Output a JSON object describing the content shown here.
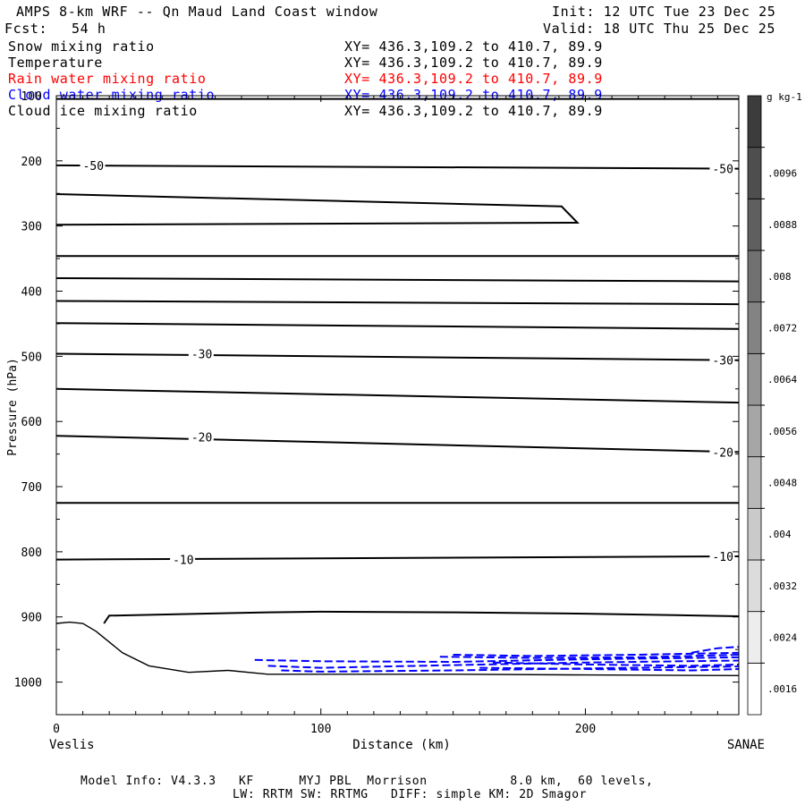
{
  "header": {
    "title": "AMPS 8-km WRF -- Qn Maud Land Coast window",
    "fcst_label": "Fcst:",
    "fcst_value": "54 h",
    "init": "Init: 12 UTC Tue 23 Dec 25",
    "valid": "Valid: 18 UTC Thu 25 Dec 25"
  },
  "fields": [
    {
      "name": "Snow mixing ratio",
      "xy": "XY= 436.3,109.2 to 410.7, 89.9",
      "color": "#000000"
    },
    {
      "name": "Temperature",
      "xy": "XY= 436.3,109.2 to 410.7, 89.9",
      "color": "#000000"
    },
    {
      "name": "Rain water mixing ratio",
      "xy": "XY= 436.3,109.2 to 410.7, 89.9",
      "color": "#ff0000"
    },
    {
      "name": "Cloud water mixing ratio",
      "xy": "XY= 436.3,109.2 to 410.7, 89.9",
      "color": "#0000ff"
    },
    {
      "name": "Cloud ice mixing ratio",
      "xy": "XY= 436.3,109.2 to 410.7, 89.9",
      "color": "#000000"
    }
  ],
  "footer": {
    "line1": "Model Info: V4.3.3   KF      MYJ PBL  Morrison           8.0 km,  60 levels,",
    "line2": "LW: RRTM SW: RRTMG   DIFF: simple KM: 2D Smagor"
  },
  "chart_data": {
    "type": "line",
    "subtype": "vertical cross-section contour",
    "xlabel": "Distance (km)",
    "ylabel": "Pressure (hPa)",
    "xlim": [
      0,
      258
    ],
    "ylim": [
      1050,
      100
    ],
    "x_ticks": [
      0,
      100,
      200
    ],
    "x_tick_labels": [
      "0",
      "100",
      "200"
    ],
    "y_ticks": [
      100,
      200,
      300,
      400,
      500,
      600,
      700,
      800,
      900,
      1000
    ],
    "y_tick_labels": [
      "100",
      "200",
      "300",
      "400",
      "500",
      "600",
      "700",
      "800",
      "900",
      "1000"
    ],
    "left_endpoint": "Veslis",
    "right_endpoint": "SANAE",
    "temperature_contours": [
      {
        "x": [
          0,
          258
        ],
        "y": [
          105,
          105
        ]
      },
      {
        "x": [
          0,
          258
        ],
        "y": [
          207,
          212
        ]
      },
      {
        "x": [
          0,
          191,
          197,
          0
        ],
        "y": [
          251,
          270,
          295,
          298
        ]
      },
      {
        "x": [
          0,
          258
        ],
        "y": [
          346,
          346
        ]
      },
      {
        "x": [
          0,
          258
        ],
        "y": [
          380,
          385
        ]
      },
      {
        "x": [
          0,
          258
        ],
        "y": [
          415,
          420
        ]
      },
      {
        "x": [
          0,
          258
        ],
        "y": [
          449,
          458
        ]
      },
      {
        "x": [
          0,
          258
        ],
        "y": [
          496,
          506
        ]
      },
      {
        "x": [
          0,
          258
        ],
        "y": [
          550,
          571
        ]
      },
      {
        "x": [
          0,
          258
        ],
        "y": [
          622,
          647
        ]
      },
      {
        "x": [
          0,
          258
        ],
        "y": [
          725,
          725
        ]
      },
      {
        "x": [
          0,
          258
        ],
        "y": [
          812,
          807
        ]
      },
      {
        "x": [
          18,
          20,
          80,
          100,
          150,
          200,
          258
        ],
        "y": [
          910,
          898,
          893,
          892,
          893,
          895,
          899
        ]
      }
    ],
    "contour_labels": [
      {
        "text": "-50",
        "x": 10,
        "y": 207
      },
      {
        "text": "-50",
        "x": 248,
        "y": 212
      },
      {
        "text": "-30",
        "x": 51,
        "y": 496
      },
      {
        "text": "-30",
        "x": 248,
        "y": 506
      },
      {
        "text": "-20",
        "x": 51,
        "y": 624
      },
      {
        "text": "-20",
        "x": 248,
        "y": 647
      },
      {
        "text": "-10",
        "x": 44,
        "y": 812
      },
      {
        "text": "-10",
        "x": 248,
        "y": 807
      }
    ],
    "terrain": {
      "x": [
        0,
        5,
        10,
        15,
        25,
        35,
        50,
        65,
        80,
        100,
        150,
        200,
        258
      ],
      "y": [
        910,
        908,
        910,
        922,
        955,
        975,
        985,
        982,
        988,
        988,
        988,
        989,
        990
      ]
    },
    "cloud_water": [
      {
        "x": [
          75,
          100,
          150,
          200,
          258
        ],
        "y": [
          966,
          968,
          969,
          965,
          962
        ]
      },
      {
        "x": [
          80,
          100,
          150,
          200,
          258
        ],
        "y": [
          975,
          978,
          974,
          970,
          967
        ]
      },
      {
        "x": [
          85,
          100,
          150,
          200,
          258
        ],
        "y": [
          982,
          984,
          982,
          979,
          976
        ]
      },
      {
        "x": [
          150,
          180,
          220,
          258
        ],
        "y": [
          958,
          960,
          958,
          955
        ]
      },
      {
        "x": [
          165,
          200,
          240,
          258
        ],
        "y": [
          970,
          973,
          975,
          973
        ]
      },
      {
        "x": [
          160,
          200,
          240,
          258
        ],
        "y": [
          978,
          980,
          982,
          980
        ]
      },
      {
        "x": [
          240,
          250,
          258
        ],
        "y": [
          955,
          948,
          946
        ]
      },
      {
        "x": [
          145,
          180,
          220,
          258
        ],
        "y": [
          961,
          963,
          962,
          958
        ]
      }
    ],
    "colorbar": {
      "unit": "g kg-1",
      "levels": [
        ".0016",
        ".0024",
        ".0032",
        ".004",
        ".0048",
        ".0056",
        ".0064",
        ".0072",
        ".008",
        ".0088",
        ".0096"
      ]
    }
  }
}
